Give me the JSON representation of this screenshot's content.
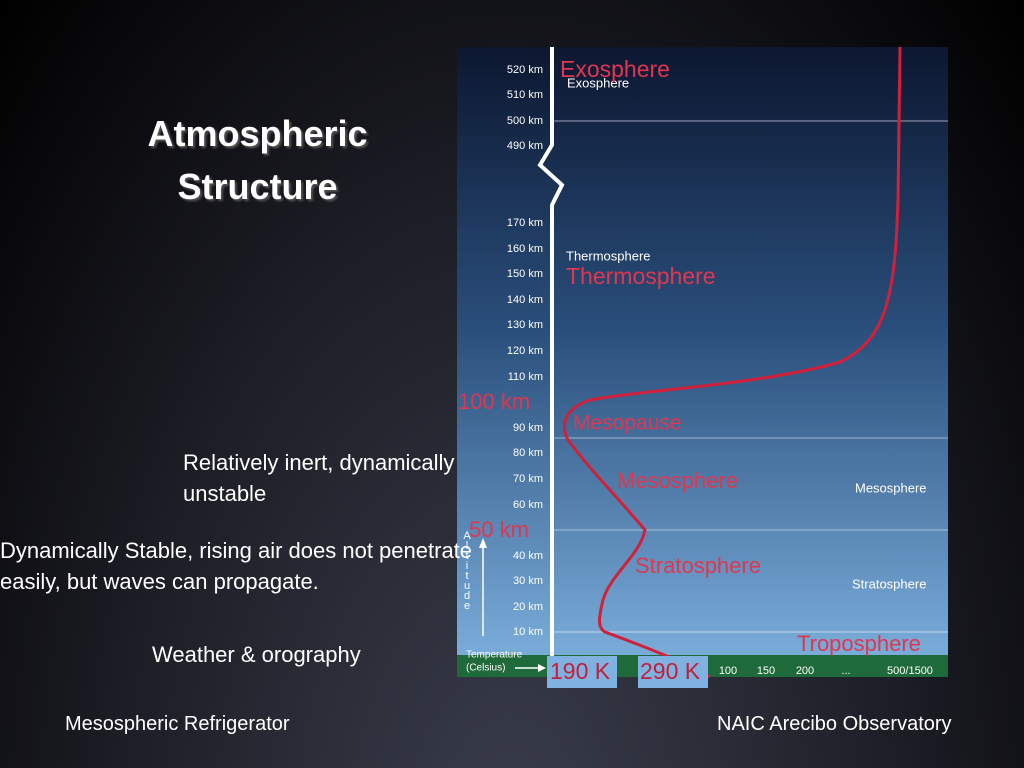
{
  "slide": {
    "title_lines": [
      "Atmospheric",
      "Structure"
    ],
    "annotations": [
      {
        "lines": [
          "Relatively inert, dynamically",
          "unstable"
        ]
      },
      {
        "lines": [
          "Dynamically Stable, rising air does not penetrate",
          "easily, but waves can propagate."
        ]
      },
      {
        "lines": [
          "Weather & orography"
        ]
      }
    ],
    "footer_left": "Mesospheric Refrigerator",
    "footer_right": "NAIC Arecibo Observatory"
  },
  "diagram": {
    "altitude_ticks": [
      "520 km",
      "510 km",
      "500 km",
      "490 km",
      "170 km",
      "160 km",
      "150 km",
      "140 km",
      "130 km",
      "120 km",
      "110 km",
      "90 km",
      "80 km",
      "70 km",
      "60 km",
      "40 km",
      "30 km",
      "20 km",
      "10 km"
    ],
    "layer_labels_small": [
      "Exosphere",
      "Thermosphere",
      "Mesosphere",
      "Stratosphere"
    ],
    "layer_labels_red": [
      "Exosphere",
      "Thermosphere",
      "Mesopause",
      "Mesosphere",
      "Stratosphere",
      "Troposphere"
    ],
    "boundary_labels": [
      "100 km",
      "50 km"
    ],
    "temperature_labels": [
      "190 K",
      "290 K"
    ],
    "axis_title": "Altitude",
    "temperature_axis_title": [
      "Temperature",
      "(Celsius)"
    ],
    "temperature_ticks": [
      "100",
      "150",
      "200",
      "...",
      "500/1500"
    ]
  }
}
